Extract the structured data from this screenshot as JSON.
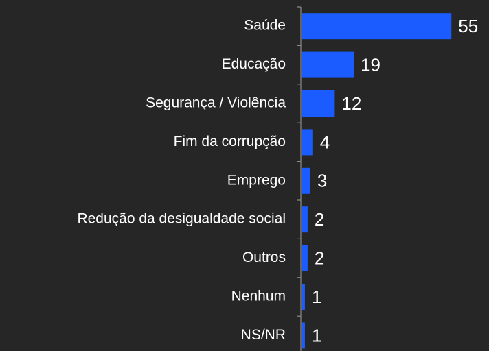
{
  "chart_data": {
    "type": "bar",
    "orientation": "horizontal",
    "categories": [
      "Saúde",
      "Educação",
      "Segurança / Violência",
      "Fim da corrupção",
      "Emprego",
      "Redução da desigualdade social",
      "Outros",
      "Nenhum",
      "NS/NR"
    ],
    "values": [
      55,
      19,
      12,
      4,
      3,
      2,
      2,
      1,
      1
    ],
    "color": "#1a5cff",
    "background": "#262626"
  }
}
